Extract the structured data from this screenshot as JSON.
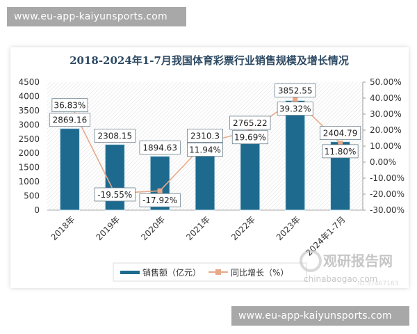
{
  "watermarks": {
    "top": "www.eu-app-kaiyunsports.com",
    "bottom": "www.eu-app-kaiyunsports.com"
  },
  "brand_watermark": {
    "name": "观研报告网",
    "url_fragment": "chinabaogao.com",
    "id": "ID:57467163"
  },
  "colors": {
    "bar": "#1d6a8e",
    "line": "#e8a98a",
    "marker": "#e8a98a",
    "title": "#2e4a63",
    "axis": "#888888"
  },
  "chart_data": {
    "type": "bar",
    "title": "2018-2024年1-7月我国体育彩票行业销售规模及增长情况",
    "categories": [
      "2018年",
      "2019年",
      "2020年",
      "2021年",
      "2022年",
      "2023年",
      "2024年1-7月"
    ],
    "series": [
      {
        "name": "销售额（亿元）",
        "type": "bar",
        "axis": "left",
        "values": [
          2869.16,
          2308.15,
          1894.63,
          2310.3,
          2765.22,
          3852.55,
          2404.79
        ],
        "labels": [
          "2869.16",
          "2308.15",
          "1894.63",
          "2310.3",
          "2765.22",
          "3852.55",
          "2404.79"
        ]
      },
      {
        "name": "同比增长（%）",
        "type": "line",
        "axis": "right",
        "values": [
          36.83,
          -19.55,
          -17.92,
          11.94,
          19.69,
          39.32,
          11.8
        ],
        "labels": [
          "36.83%",
          "-19.55%",
          "-17.92%",
          "11.94%",
          "19.69%",
          "39.32%",
          "11.80%"
        ]
      }
    ],
    "y_left": {
      "ylim": [
        0,
        4500
      ],
      "ticks": [
        "4500",
        "4000",
        "3500",
        "3000",
        "2500",
        "2000",
        "1500",
        "1000",
        "500",
        "0"
      ]
    },
    "y_right": {
      "ylim": [
        -30,
        50
      ],
      "ticks": [
        "50.00%",
        "40.00%",
        "30.00%",
        "20.00%",
        "10.00%",
        "0.00%",
        "-10.00%",
        "-20.00%",
        "-30.00%"
      ]
    },
    "xlabel": "",
    "ylabel": "",
    "grid": false,
    "legend_position": "bottom",
    "legend": [
      "销售额（亿元）",
      "同比增长（%）"
    ]
  }
}
